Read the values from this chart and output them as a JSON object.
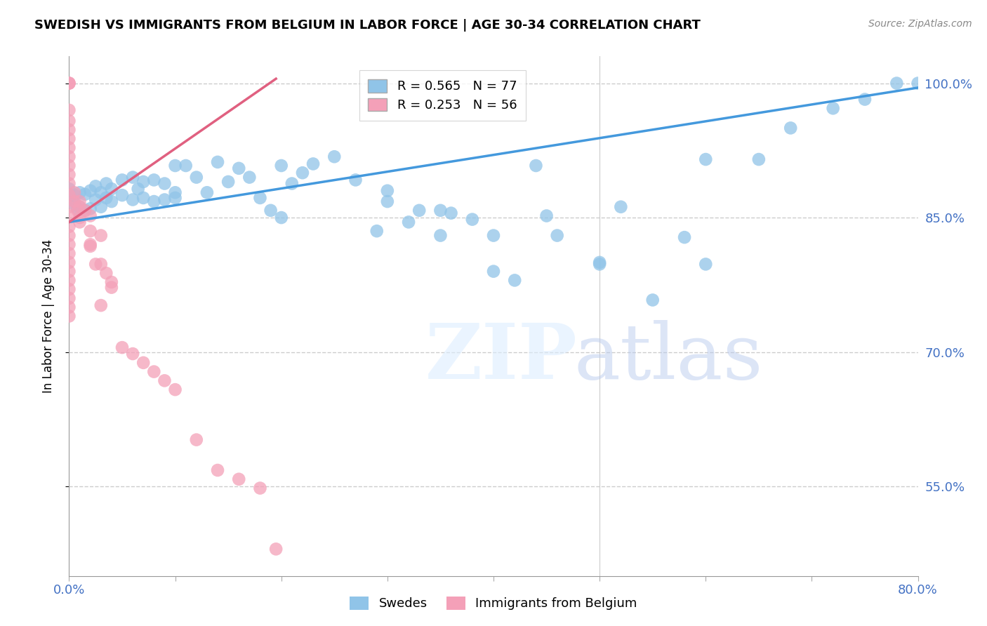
{
  "title": "SWEDISH VS IMMIGRANTS FROM BELGIUM IN LABOR FORCE | AGE 30-34 CORRELATION CHART",
  "source": "Source: ZipAtlas.com",
  "ylabel": "In Labor Force | Age 30-34",
  "xlim": [
    0.0,
    0.8
  ],
  "ylim": [
    0.45,
    1.03
  ],
  "yticks": [
    0.55,
    0.7,
    0.85,
    1.0
  ],
  "ytick_labels": [
    "55.0%",
    "70.0%",
    "85.0%",
    "100.0%"
  ],
  "legend_blue_label": "Swedes",
  "legend_pink_label": "Immigrants from Belgium",
  "blue_R": 0.565,
  "blue_N": 77,
  "pink_R": 0.253,
  "pink_N": 56,
  "blue_color": "#90c4e8",
  "pink_color": "#f4a0b8",
  "blue_line_color": "#4499dd",
  "pink_line_color": "#e06080",
  "blue_trend_x": [
    0.0,
    0.8
  ],
  "blue_trend_y": [
    0.845,
    0.995
  ],
  "pink_trend_x": [
    0.0,
    0.195
  ],
  "pink_trend_y": [
    0.845,
    1.005
  ],
  "blue_points_x": [
    0.0,
    0.0,
    0.005,
    0.005,
    0.008,
    0.01,
    0.01,
    0.015,
    0.015,
    0.02,
    0.02,
    0.025,
    0.025,
    0.03,
    0.03,
    0.035,
    0.035,
    0.04,
    0.04,
    0.05,
    0.05,
    0.06,
    0.06,
    0.065,
    0.07,
    0.07,
    0.08,
    0.08,
    0.09,
    0.09,
    0.1,
    0.1,
    0.11,
    0.12,
    0.13,
    0.14,
    0.15,
    0.16,
    0.17,
    0.18,
    0.19,
    0.2,
    0.21,
    0.22,
    0.23,
    0.25,
    0.27,
    0.29,
    0.3,
    0.32,
    0.33,
    0.35,
    0.36,
    0.38,
    0.4,
    0.42,
    0.44,
    0.46,
    0.5,
    0.52,
    0.55,
    0.58,
    0.6,
    0.65,
    0.68,
    0.72,
    0.75,
    0.78,
    0.8,
    0.6,
    0.4,
    0.45,
    0.3,
    0.2,
    0.1,
    0.5,
    0.35
  ],
  "blue_points_y": [
    0.882,
    0.87,
    0.875,
    0.865,
    0.86,
    0.878,
    0.862,
    0.876,
    0.858,
    0.88,
    0.86,
    0.885,
    0.87,
    0.878,
    0.862,
    0.888,
    0.872,
    0.882,
    0.868,
    0.892,
    0.875,
    0.895,
    0.87,
    0.882,
    0.89,
    0.872,
    0.892,
    0.868,
    0.888,
    0.87,
    0.908,
    0.878,
    0.908,
    0.895,
    0.878,
    0.912,
    0.89,
    0.905,
    0.895,
    0.872,
    0.858,
    0.908,
    0.888,
    0.9,
    0.91,
    0.918,
    0.892,
    0.835,
    0.88,
    0.845,
    0.858,
    0.83,
    0.855,
    0.848,
    0.79,
    0.78,
    0.908,
    0.83,
    0.798,
    0.862,
    0.758,
    0.828,
    0.798,
    0.915,
    0.95,
    0.972,
    0.982,
    1.0,
    1.0,
    0.915,
    0.83,
    0.852,
    0.868,
    0.85,
    0.872,
    0.8,
    0.858
  ],
  "pink_points_x": [
    0.0,
    0.0,
    0.0,
    0.0,
    0.0,
    0.0,
    0.0,
    0.0,
    0.0,
    0.0,
    0.0,
    0.0,
    0.005,
    0.005,
    0.008,
    0.01,
    0.01,
    0.015,
    0.02,
    0.02,
    0.025,
    0.03,
    0.03,
    0.035,
    0.04,
    0.05,
    0.06,
    0.07,
    0.08,
    0.09,
    0.1,
    0.12,
    0.14,
    0.16,
    0.18,
    0.195,
    0.0,
    0.0,
    0.0,
    0.0,
    0.0,
    0.0,
    0.0,
    0.0,
    0.0,
    0.0,
    0.0,
    0.0,
    0.0,
    0.0,
    0.01,
    0.01,
    0.02,
    0.02,
    0.03,
    0.04
  ],
  "pink_points_y": [
    1.0,
    1.0,
    1.0,
    0.97,
    0.958,
    0.948,
    0.938,
    0.928,
    0.918,
    0.908,
    0.898,
    0.888,
    0.878,
    0.868,
    0.858,
    0.868,
    0.85,
    0.858,
    0.852,
    0.818,
    0.798,
    0.798,
    0.752,
    0.788,
    0.778,
    0.705,
    0.698,
    0.688,
    0.678,
    0.668,
    0.658,
    0.602,
    0.568,
    0.558,
    0.548,
    0.48,
    0.875,
    0.862,
    0.852,
    0.84,
    0.83,
    0.82,
    0.81,
    0.8,
    0.79,
    0.78,
    0.77,
    0.76,
    0.75,
    0.74,
    0.862,
    0.845,
    0.835,
    0.82,
    0.83,
    0.772
  ]
}
